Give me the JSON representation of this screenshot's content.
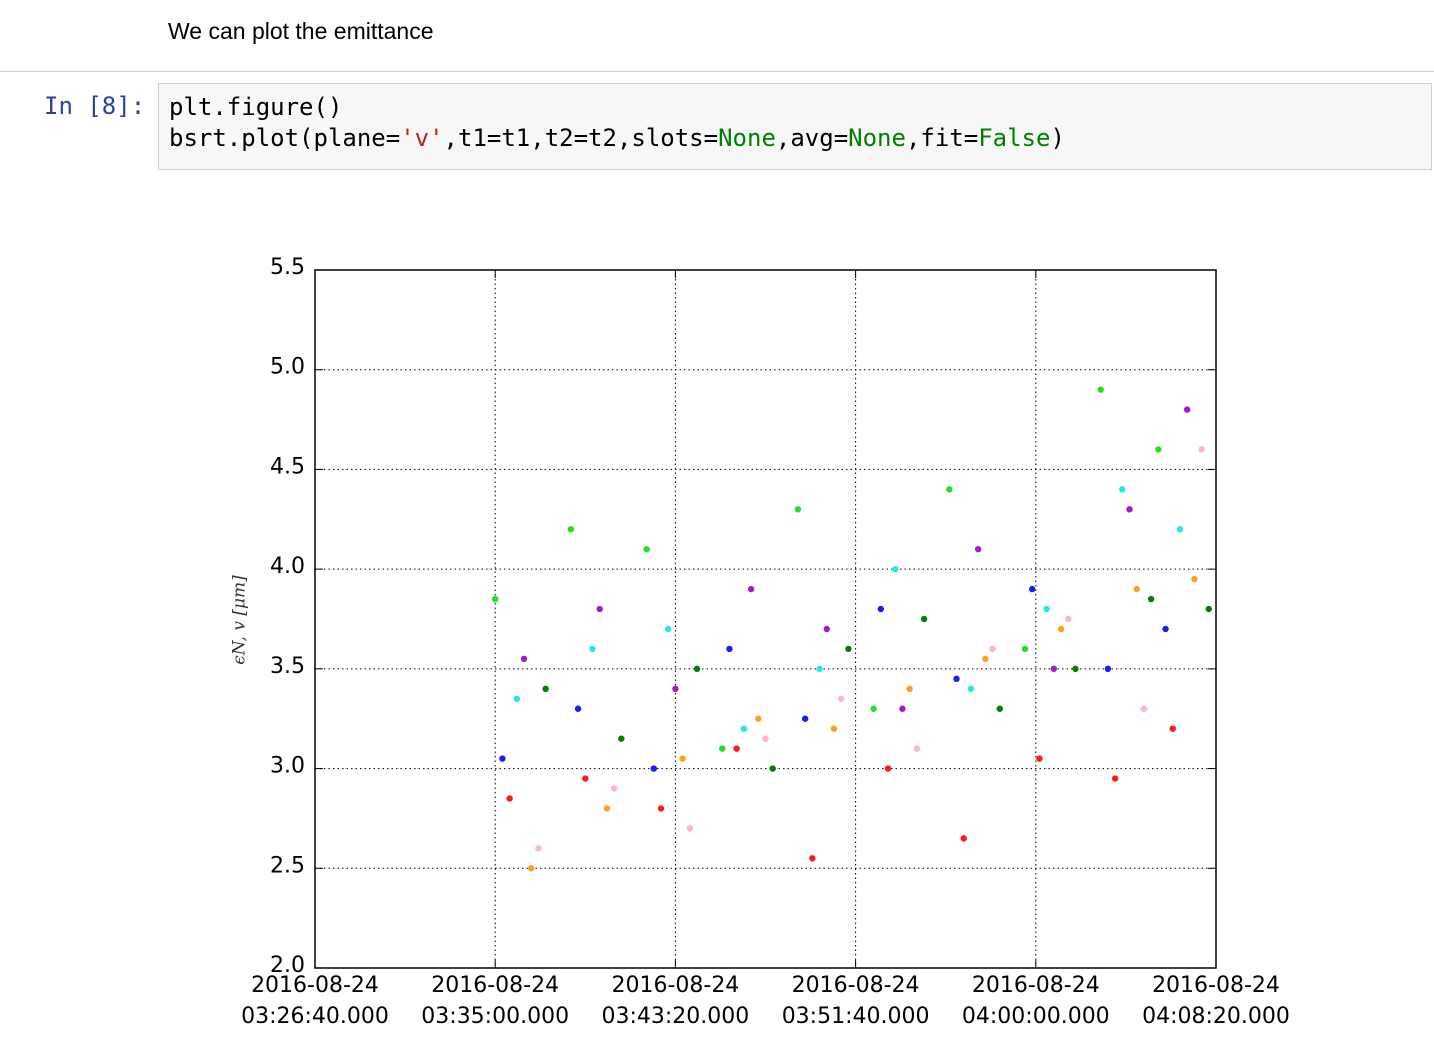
{
  "markdown": {
    "text": "We can plot the emittance"
  },
  "cell": {
    "prompt": "In [8]:",
    "code": [
      [
        {
          "text": "plt.figure()",
          "color": "#000000"
        }
      ],
      [
        {
          "text": "bsrt.plot(plane=",
          "color": "#000000"
        },
        {
          "text": "'v'",
          "color": "#ba2121"
        },
        {
          "text": ",t1=t1,t2=t2,slots=",
          "color": "#000000"
        },
        {
          "text": "None",
          "color": "#008000"
        },
        {
          "text": ",avg=",
          "color": "#000000"
        },
        {
          "text": "None",
          "color": "#008000"
        },
        {
          "text": ",fit=",
          "color": "#000000"
        },
        {
          "text": "False",
          "color": "#008000"
        },
        {
          "text": ")",
          "color": "#000000"
        }
      ]
    ]
  },
  "chart_data": {
    "type": "scatter",
    "ylabel": "ϵN, v [μm]",
    "grid": true,
    "xlim": [
      "2016-08-24 03:26:40",
      "2016-08-24 04:08:20"
    ],
    "xticks": [
      {
        "value": "2016-08-24 03:26:40",
        "label": "2016-08-24\n03:26:40.000"
      },
      {
        "value": "2016-08-24 03:35:00",
        "label": "2016-08-24\n03:35:00.000"
      },
      {
        "value": "2016-08-24 03:43:20",
        "label": "2016-08-24\n03:43:20.000"
      },
      {
        "value": "2016-08-24 03:51:40",
        "label": "2016-08-24\n03:51:40.000"
      },
      {
        "value": "2016-08-24 04:00:00",
        "label": "2016-08-24\n04:00:00.000"
      },
      {
        "value": "2016-08-24 04:08:20",
        "label": "2016-08-24\n04:08:20.000"
      }
    ],
    "ylim": [
      2,
      5.5
    ],
    "yticks": [
      {
        "value": 2,
        "label": "2.0"
      },
      2.5,
      {
        "value": 3,
        "label": "3.0"
      },
      3.5,
      {
        "value": 4,
        "label": "4.0"
      },
      4.5,
      {
        "value": 5,
        "label": "5.0"
      },
      5.5
    ],
    "series": [
      {
        "color": "#22e022",
        "x": [
          "2016-08-24 03:35:00",
          "2016-08-24 03:38:30",
          "2016-08-24 03:42:00",
          "2016-08-24 03:45:30",
          "2016-08-24 03:49:00",
          "2016-08-24 03:52:30",
          "2016-08-24 03:56:00",
          "2016-08-24 03:59:30",
          "2016-08-24 04:03:00",
          "2016-08-24 04:05:40"
        ],
        "values": [
          3.85,
          4.2,
          4.1,
          3.1,
          4.3,
          3.3,
          4.4,
          3.6,
          4.9,
          4.6
        ]
      },
      {
        "color": "#1a1aff",
        "x": [
          "2016-08-24 03:35:20",
          "2016-08-24 03:38:50",
          "2016-08-24 03:42:20",
          "2016-08-24 03:45:50",
          "2016-08-24 03:49:20",
          "2016-08-24 03:52:50",
          "2016-08-24 03:56:20",
          "2016-08-24 03:59:50",
          "2016-08-24 04:03:20",
          "2016-08-24 04:06:00"
        ],
        "values": [
          3.05,
          3.3,
          3.0,
          3.6,
          3.25,
          3.8,
          3.45,
          3.9,
          3.5,
          3.7
        ]
      },
      {
        "color": "#ff1a1a",
        "x": [
          "2016-08-24 03:35:40",
          "2016-08-24 03:39:10",
          "2016-08-24 03:42:40",
          "2016-08-24 03:46:10",
          "2016-08-24 03:49:40",
          "2016-08-24 03:53:10",
          "2016-08-24 03:56:40",
          "2016-08-24 04:00:10",
          "2016-08-24 04:03:40",
          "2016-08-24 04:06:20"
        ],
        "values": [
          2.85,
          2.95,
          2.8,
          3.1,
          2.55,
          3.0,
          2.65,
          3.05,
          2.95,
          3.2
        ]
      },
      {
        "color": "#22e8e8",
        "x": [
          "2016-08-24 03:36:00",
          "2016-08-24 03:39:30",
          "2016-08-24 03:43:00",
          "2016-08-24 03:46:30",
          "2016-08-24 03:50:00",
          "2016-08-24 03:53:30",
          "2016-08-24 03:57:00",
          "2016-08-24 04:00:30",
          "2016-08-24 04:04:00",
          "2016-08-24 04:06:40"
        ],
        "values": [
          3.35,
          3.6,
          3.7,
          3.2,
          3.5,
          4.0,
          3.4,
          3.8,
          4.4,
          4.2
        ]
      },
      {
        "color": "#9b1fc9",
        "x": [
          "2016-08-24 03:36:20",
          "2016-08-24 03:39:50",
          "2016-08-24 03:43:20",
          "2016-08-24 03:46:50",
          "2016-08-24 03:50:20",
          "2016-08-24 03:53:50",
          "2016-08-24 03:57:20",
          "2016-08-24 04:00:50",
          "2016-08-24 04:04:20",
          "2016-08-24 04:07:00"
        ],
        "values": [
          3.55,
          3.8,
          3.4,
          3.9,
          3.7,
          3.3,
          4.1,
          3.5,
          4.3,
          4.8
        ]
      },
      {
        "color": "#ffa21a",
        "x": [
          "2016-08-24 03:36:40",
          "2016-08-24 03:40:10",
          "2016-08-24 03:43:40",
          "2016-08-24 03:47:10",
          "2016-08-24 03:50:40",
          "2016-08-24 03:54:10",
          "2016-08-24 03:57:40",
          "2016-08-24 04:01:10",
          "2016-08-24 04:04:40",
          "2016-08-24 04:07:20"
        ],
        "values": [
          2.5,
          2.8,
          3.05,
          3.25,
          3.2,
          3.4,
          3.55,
          3.7,
          3.9,
          3.95
        ]
      },
      {
        "color": "#ffb6c1",
        "x": [
          "2016-08-24 03:37:00",
          "2016-08-24 03:40:30",
          "2016-08-24 03:44:00",
          "2016-08-24 03:47:30",
          "2016-08-24 03:51:00",
          "2016-08-24 03:54:30",
          "2016-08-24 03:58:00",
          "2016-08-24 04:01:30",
          "2016-08-24 04:05:00",
          "2016-08-24 04:07:40"
        ],
        "values": [
          2.6,
          2.9,
          2.7,
          3.15,
          3.35,
          3.1,
          3.6,
          3.75,
          3.3,
          4.6
        ]
      },
      {
        "color": "#0b7a0b",
        "x": [
          "2016-08-24 03:37:20",
          "2016-08-24 03:40:50",
          "2016-08-24 03:44:20",
          "2016-08-24 03:47:50",
          "2016-08-24 03:51:20",
          "2016-08-24 03:54:50",
          "2016-08-24 03:58:20",
          "2016-08-24 04:01:50",
          "2016-08-24 04:05:20",
          "2016-08-24 04:08:00"
        ],
        "values": [
          3.4,
          3.15,
          3.5,
          3.0,
          3.6,
          3.75,
          3.3,
          3.5,
          3.85,
          3.8
        ]
      }
    ]
  }
}
